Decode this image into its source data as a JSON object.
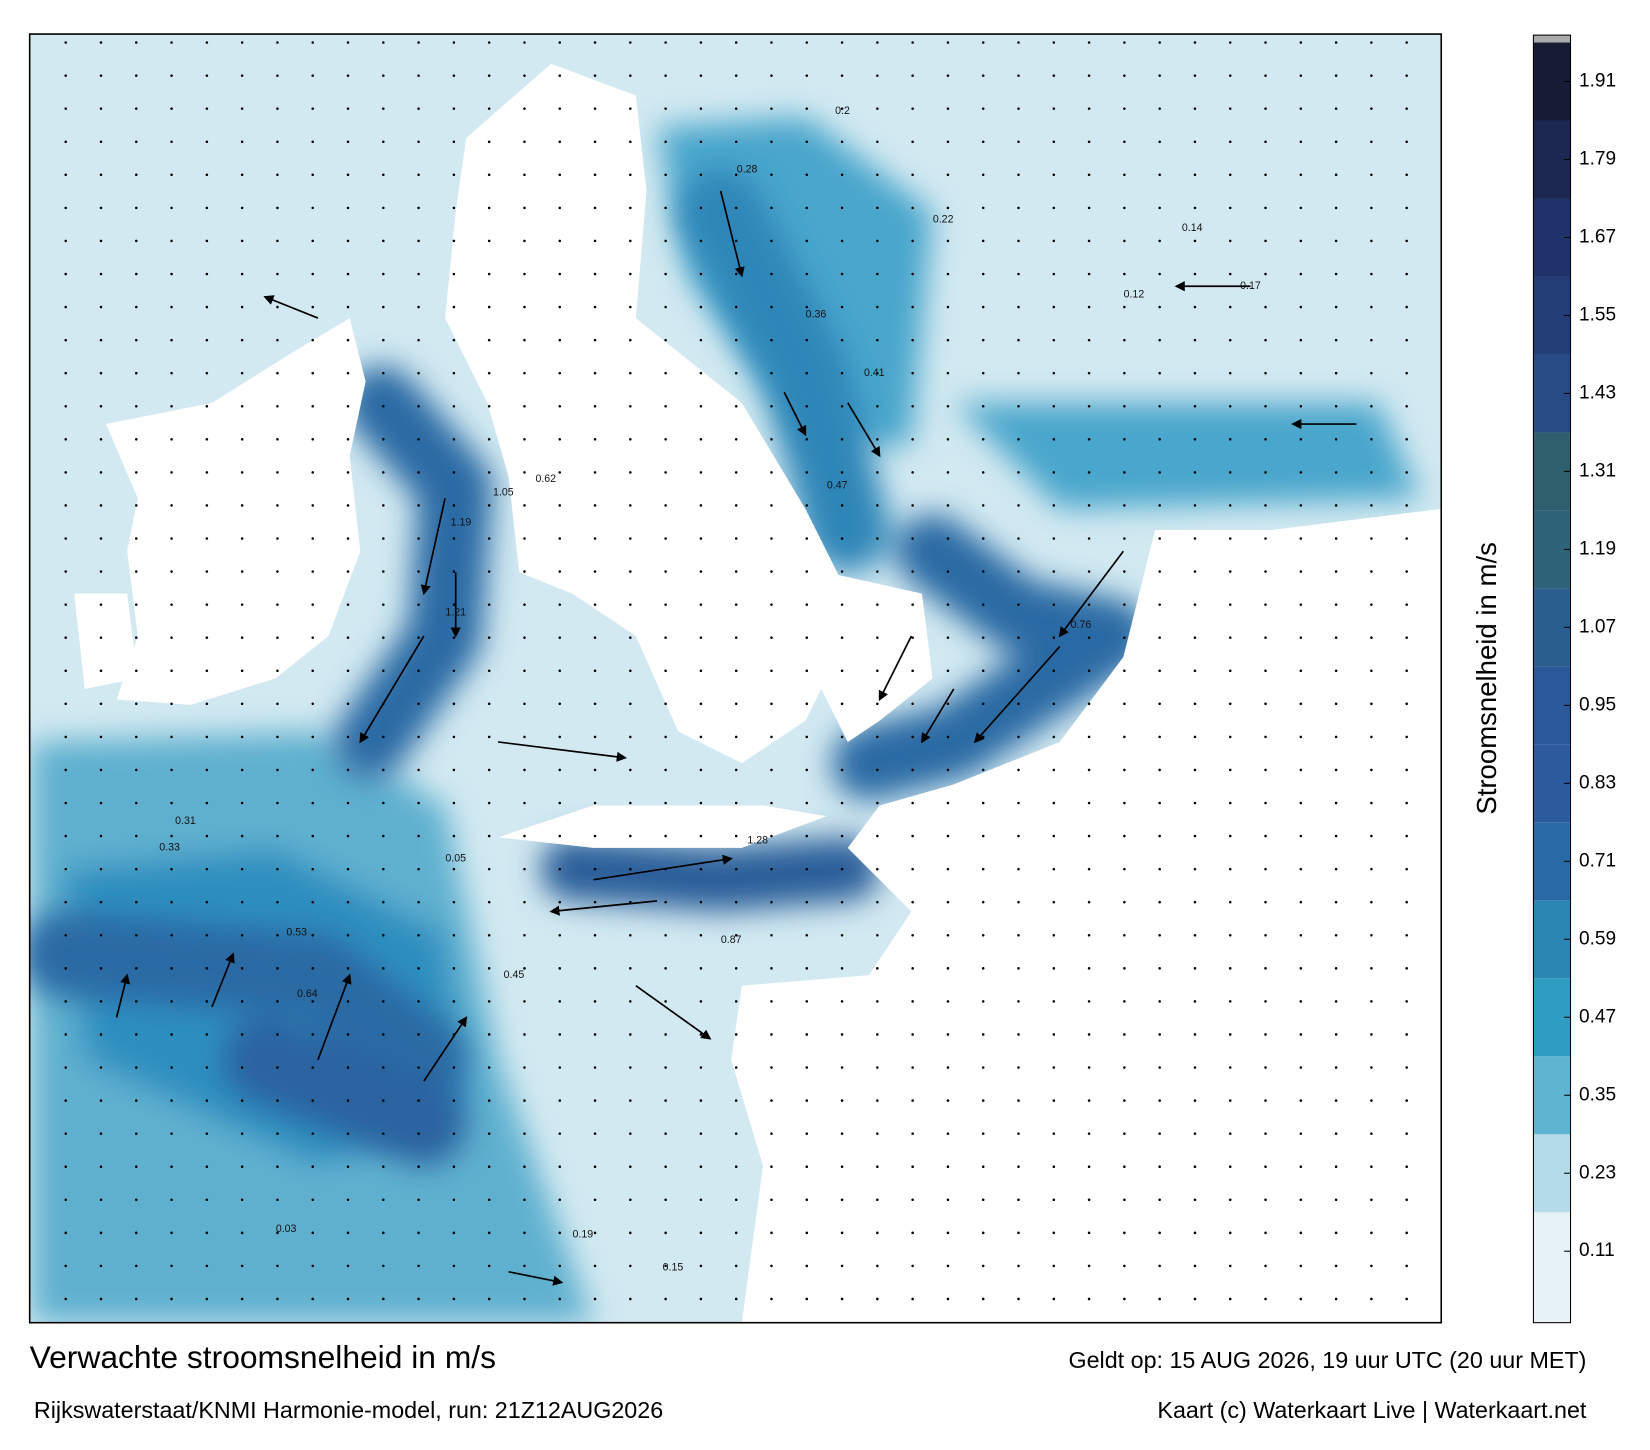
{
  "title": "Verwachte stroomsnelheid in m/s",
  "valid_time": "Geldt op: 15 AUG 2026, 19 uur UTC (20 uur MET)",
  "source": "Rijkswaterstaat/KNMI Harmonie-model, run: 21Z12AUG2026",
  "credit": "Kaart (c) Waterkaart Live | Waterkaart.net",
  "colorbar": {
    "label": "Stroomsnelheid in m/s",
    "clim": [
      0,
      1.97
    ],
    "ticks": [
      0.11,
      0.23,
      0.35,
      0.47,
      0.59,
      0.71,
      0.83,
      0.95,
      1.07,
      1.19,
      1.31,
      1.43,
      1.55,
      1.67,
      1.79,
      1.91
    ],
    "colors": [
      "#e6f2f6",
      "#b3dbe8",
      "#5fb4d2",
      "#2f9cc1",
      "#2a86b3",
      "#2a6aa4",
      "#2c5a9c",
      "#2b5898",
      "#2a5e8e",
      "#2d647a",
      "#2f5e6c",
      "#284a85",
      "#233d77",
      "#1f326a",
      "#1c2752",
      "#161b36"
    ]
  },
  "speed_labels": [
    1.28,
    1.19,
    1.21,
    1.05,
    0.87,
    0.76,
    0.62,
    0.47,
    0.41,
    0.36,
    0.28,
    0.2,
    0.22,
    0.17,
    0.14,
    0.12,
    0.53,
    0.64,
    0.45,
    0.33,
    0.31,
    0.19,
    0.15,
    0.03,
    0.05
  ]
}
